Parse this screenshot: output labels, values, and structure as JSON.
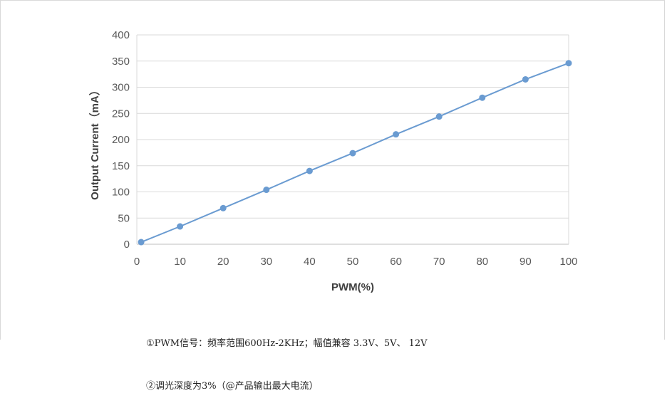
{
  "chart_data": {
    "type": "line",
    "title": "",
    "xlabel": "PWM(%)",
    "ylabel": "Output Current（mA）",
    "xlim": [
      0,
      100
    ],
    "ylim": [
      0,
      400
    ],
    "xticks": [
      0,
      10,
      20,
      30,
      40,
      50,
      60,
      70,
      80,
      90,
      100
    ],
    "yticks": [
      0,
      50,
      100,
      150,
      200,
      250,
      300,
      350,
      400
    ],
    "grid": "horizontal",
    "legend": "none",
    "color": "#6a9bd1",
    "series": [
      {
        "x": [
          1,
          10,
          20,
          30,
          40,
          50,
          60,
          70,
          80,
          90,
          100
        ],
        "y": [
          4,
          34,
          69,
          104,
          140,
          174,
          210,
          244,
          280,
          315,
          346
        ]
      }
    ]
  },
  "notes": {
    "line1": "①PWM信号：频率范围600Hz-2KHz；幅值兼容 3.3V、5V、 12V",
    "line2": "②调光深度为3%（@产品输出最大电流）"
  }
}
